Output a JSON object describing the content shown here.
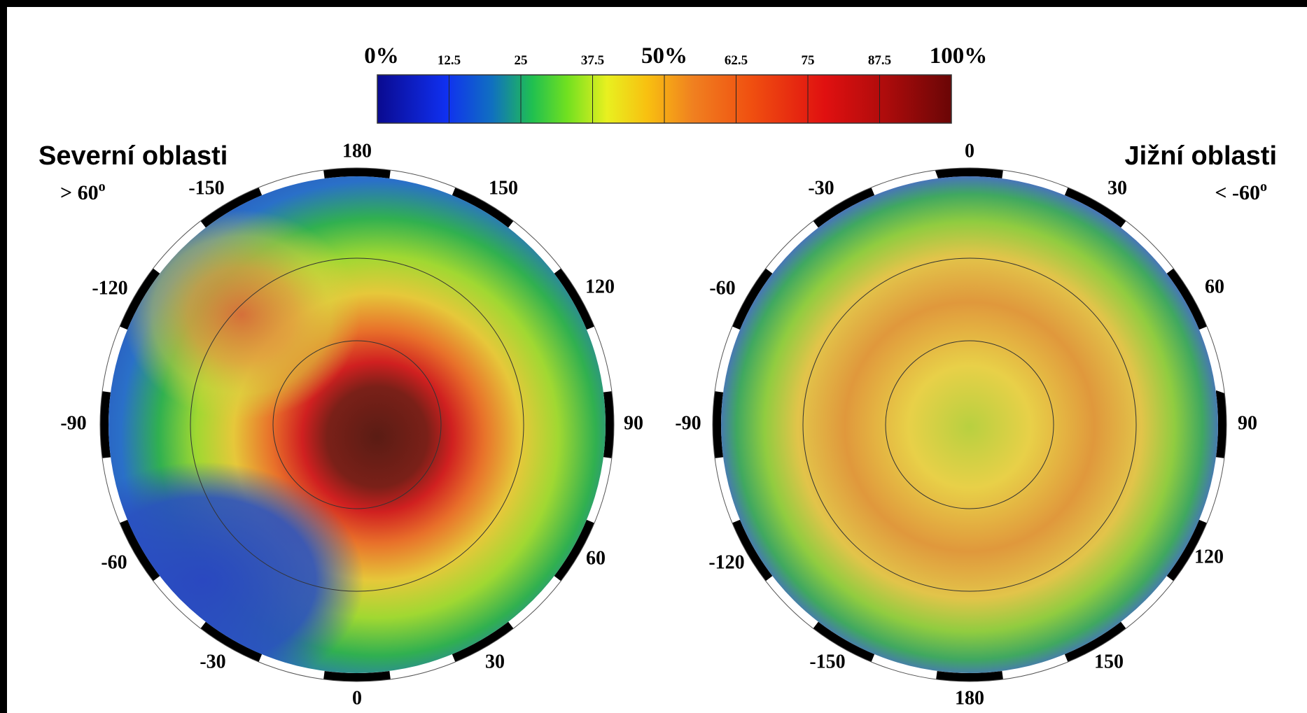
{
  "colorbar": {
    "labels": [
      "0%",
      "12.5",
      "25",
      "37.5",
      "50%",
      "62.5",
      "75",
      "87.5",
      "100%"
    ]
  },
  "maps": [
    {
      "title": "Severní oblasti",
      "subtitle": "> 60",
      "subtitle_unit": "o",
      "longitude_labels": [
        "180",
        "-150",
        "150",
        "-120",
        "120",
        "-90",
        "90",
        "-60",
        "60",
        "-30",
        "30",
        "0"
      ]
    },
    {
      "title": "Jižní oblasti",
      "subtitle": "< -60",
      "subtitle_unit": "o",
      "longitude_labels": [
        "0",
        "-30",
        "30",
        "-60",
        "60",
        "-90",
        "90",
        "-120",
        "120",
        "-150",
        "150",
        "180"
      ]
    }
  ]
}
